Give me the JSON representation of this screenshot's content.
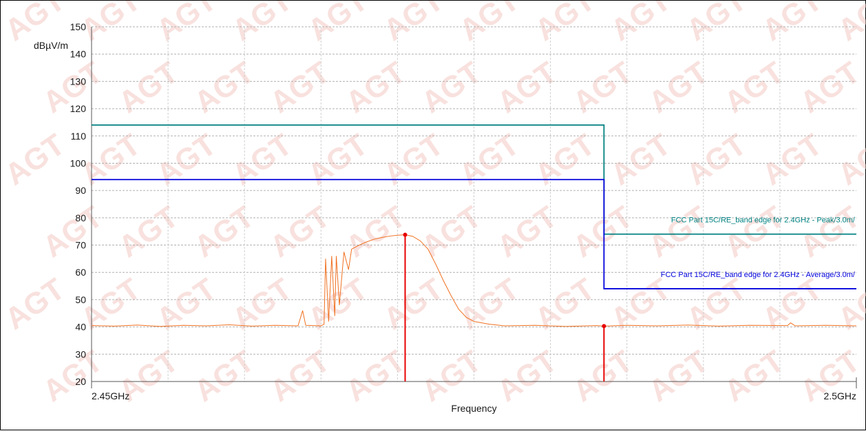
{
  "chart_data": {
    "type": "line",
    "title": "",
    "ylabel": "dBµV/m",
    "xlabel": "Frequency",
    "ylim": [
      20,
      150
    ],
    "yticks": [
      20,
      30,
      40,
      50,
      60,
      70,
      80,
      90,
      100,
      110,
      120,
      130,
      140,
      150
    ],
    "xlim": [
      2.45,
      2.5
    ],
    "xtick_labels": [
      {
        "value": 2.45,
        "label": "2.45GHz"
      },
      {
        "value": 2.5,
        "label": "2.5GHz"
      }
    ],
    "grid": true,
    "watermark": "AGT",
    "limits": [
      {
        "name": "FCC Part 15C/RE_band edge for 2.4GHz  - Peak/3.0m/",
        "color": "#008080",
        "points": [
          [
            2.45,
            114
          ],
          [
            2.4835,
            114
          ],
          [
            2.4835,
            74
          ],
          [
            2.5,
            74
          ]
        ]
      },
      {
        "name": "FCC Part 15C/RE_band edge for 2.4GHz  - Average/3.0m/",
        "color": "#0000dd",
        "points": [
          [
            2.45,
            94
          ],
          [
            2.4835,
            94
          ],
          [
            2.4835,
            54
          ],
          [
            2.5,
            54
          ]
        ]
      }
    ],
    "series": [
      {
        "color": "#f07020",
        "points": [
          [
            2.45,
            40.5
          ],
          [
            2.4515,
            40.3
          ],
          [
            2.453,
            40.7
          ],
          [
            2.4545,
            40.2
          ],
          [
            2.456,
            40.6
          ],
          [
            2.4575,
            40.4
          ],
          [
            2.459,
            40.8
          ],
          [
            2.4605,
            40.3
          ],
          [
            2.462,
            40.6
          ],
          [
            2.4635,
            40.4
          ],
          [
            2.4638,
            46
          ],
          [
            2.464,
            40.6
          ],
          [
            2.4645,
            40.5
          ],
          [
            2.465,
            40.4
          ],
          [
            2.4652,
            41
          ],
          [
            2.4653,
            65
          ],
          [
            2.4655,
            42
          ],
          [
            2.4657,
            66
          ],
          [
            2.4659,
            44
          ],
          [
            2.466,
            66
          ],
          [
            2.4662,
            48
          ],
          [
            2.4665,
            67.5
          ],
          [
            2.4668,
            61
          ],
          [
            2.467,
            68.5
          ],
          [
            2.4675,
            70
          ],
          [
            2.468,
            71.2
          ],
          [
            2.4685,
            72.2
          ],
          [
            2.469,
            72.8
          ],
          [
            2.4695,
            73.3
          ],
          [
            2.47,
            73.6
          ],
          [
            2.4705,
            73.8
          ],
          [
            2.471,
            73.2
          ],
          [
            2.4715,
            71.5
          ],
          [
            2.472,
            68.5
          ],
          [
            2.4725,
            63
          ],
          [
            2.473,
            57
          ],
          [
            2.4735,
            51.5
          ],
          [
            2.474,
            46.5
          ],
          [
            2.4745,
            43.5
          ],
          [
            2.475,
            42
          ],
          [
            2.476,
            41
          ],
          [
            2.477,
            40.4
          ],
          [
            2.479,
            40.6
          ],
          [
            2.481,
            40.2
          ],
          [
            2.483,
            40.5
          ],
          [
            2.4835,
            40.3
          ],
          [
            2.485,
            40.6
          ],
          [
            2.487,
            40.4
          ],
          [
            2.489,
            40.7
          ],
          [
            2.491,
            40.3
          ],
          [
            2.493,
            40.6
          ],
          [
            2.4955,
            40.5
          ],
          [
            2.4957,
            41.5
          ],
          [
            2.496,
            40.4
          ],
          [
            2.498,
            40.6
          ],
          [
            2.5,
            40.4
          ]
        ]
      }
    ],
    "markers": [
      {
        "x": 2.4705,
        "y": 73.8,
        "color": "#e80000"
      },
      {
        "x": 2.4835,
        "y": 40.3,
        "color": "#e80000"
      }
    ]
  }
}
